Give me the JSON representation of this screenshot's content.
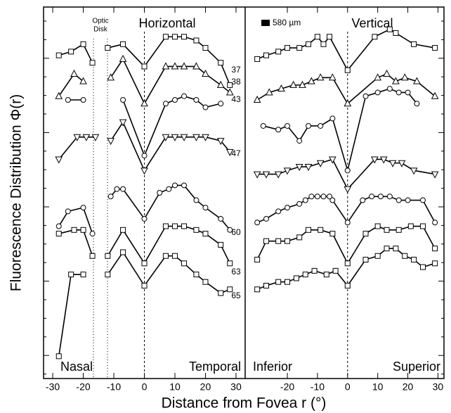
{
  "chart_data": [
    {
      "type": "line",
      "title": "Horizontal",
      "ylabel": "Fluorescence Distribution Φ(r)",
      "xlabel": "Distance from Fovea r (°)",
      "optic_disk_label": [
        "Optic",
        "Disk"
      ],
      "left_label": "Nasal",
      "right_label": "Temporal",
      "xlim": [
        -33,
        33
      ],
      "xticks": [
        -30,
        -20,
        -10,
        0,
        10,
        20,
        30
      ],
      "ylim": [
        0,
        100
      ],
      "series": [
        {
          "name": "37",
          "marker": "square",
          "color": "#000",
          "x": [
            -28,
            -24,
            -20,
            -17,
            -14,
            -12,
            -7,
            0,
            7,
            10,
            13,
            17,
            20,
            25,
            28
          ],
          "values": [
            87,
            88,
            90,
            85,
            null,
            89,
            90,
            84,
            92,
            92,
            92,
            91,
            89,
            85,
            79
          ]
        },
        {
          "name": "38",
          "marker": "triangle",
          "color": "#000",
          "x": [
            -28,
            -23,
            -20,
            -14,
            -11,
            -7,
            0,
            7,
            10,
            13,
            17,
            20,
            25,
            28
          ],
          "values": [
            76,
            82,
            80,
            null,
            81,
            86,
            74,
            84,
            84,
            84,
            84,
            82,
            79,
            77
          ]
        },
        {
          "name": "43",
          "marker": "circle",
          "color": "#000",
          "x": [
            -25,
            -20,
            -14,
            -7,
            0,
            7,
            10,
            13,
            17,
            20,
            25
          ],
          "values": [
            75,
            75,
            null,
            75,
            60,
            74,
            75,
            76,
            75,
            73,
            74
          ]
        },
        {
          "name": "47",
          "marker": "triangle-down",
          "color": "#000",
          "x": [
            -28,
            -22,
            -19,
            -16,
            -14,
            -11,
            -7,
            0,
            7,
            10,
            13,
            17,
            20,
            25,
            28
          ],
          "values": [
            59,
            65,
            65,
            65,
            null,
            64,
            69,
            56,
            65,
            65,
            65,
            65,
            65,
            64,
            61
          ]
        },
        {
          "name": "60",
          "marker": "circle",
          "color": "#000",
          "x": [
            -28,
            -25,
            -20,
            -17,
            -14,
            -11,
            -9,
            -7,
            0,
            5,
            8,
            10,
            13,
            17,
            20,
            25,
            28
          ],
          "values": [
            41,
            45,
            46,
            39,
            null,
            49,
            51,
            51,
            43,
            50,
            51,
            52,
            52,
            48,
            46,
            43,
            40
          ]
        },
        {
          "name": "63",
          "marker": "square",
          "color": "#000",
          "x": [
            -28,
            -23,
            -20,
            -17,
            -14,
            -12,
            -7,
            0,
            7,
            10,
            13,
            17,
            20,
            25,
            28
          ],
          "values": [
            39,
            40,
            40,
            33,
            null,
            33,
            40,
            31,
            41,
            41,
            41,
            40,
            39,
            36,
            31
          ]
        },
        {
          "name": "65",
          "marker": "square",
          "color": "#000",
          "x": [
            -28,
            -24,
            -20,
            -14,
            -12,
            -7,
            0,
            7,
            10,
            13,
            17,
            20,
            25,
            28
          ],
          "values": [
            6,
            28,
            28,
            null,
            28,
            34,
            25,
            33,
            33,
            31,
            28,
            26,
            23,
            24
          ]
        }
      ]
    },
    {
      "type": "line",
      "title": "Vertical",
      "scale_label": "580 µm",
      "left_label": "Inferior",
      "right_label": "Superior",
      "xlim": [
        -34,
        32
      ],
      "xticks": [
        -20,
        -10,
        0,
        10,
        20,
        30
      ],
      "ylim": [
        0,
        100
      ],
      "series": [
        {
          "marker": "square",
          "color": "#000",
          "x": [
            -30,
            -27,
            -23,
            -20,
            -16,
            -13,
            -10,
            -8,
            -6,
            0,
            9,
            14,
            16,
            22,
            29
          ],
          "values": [
            86,
            87,
            88,
            89,
            89,
            90,
            92,
            90,
            92,
            83,
            92,
            94,
            93,
            90,
            89
          ]
        },
        {
          "marker": "triangle",
          "color": "#000",
          "x": [
            -30,
            -26,
            -22,
            -18,
            -15,
            -12,
            -9,
            -5,
            0,
            10,
            13,
            16,
            19,
            23,
            29
          ],
          "values": [
            75,
            77,
            78,
            79,
            79,
            80,
            81,
            81,
            74,
            81,
            82,
            80,
            81,
            80,
            76
          ]
        },
        {
          "marker": "circle",
          "color": "#000",
          "x": [
            -28,
            -23,
            -20,
            -16,
            -13,
            -9,
            -5,
            0,
            6,
            10,
            14,
            17,
            20,
            23
          ],
          "values": [
            68,
            67,
            68,
            64,
            68,
            68,
            70,
            56,
            76,
            77,
            78,
            77,
            77,
            74
          ]
        },
        {
          "marker": "triangle-down",
          "color": "#000",
          "x": [
            -30,
            -27,
            -23,
            -20,
            -16,
            -13,
            -9,
            -5,
            0,
            9,
            12,
            15,
            18,
            22,
            29
          ],
          "values": [
            55,
            55,
            55,
            56,
            57,
            57,
            58,
            59,
            51,
            59,
            59,
            58,
            58,
            56,
            55
          ]
        },
        {
          "marker": "circle",
          "color": "#000",
          "x": [
            -30,
            -27,
            -23,
            -20,
            -16,
            -14,
            -12,
            -10,
            -8,
            -6,
            -5,
            0,
            5,
            8,
            11,
            14,
            17,
            20,
            25,
            29
          ],
          "values": [
            42,
            43,
            45,
            46,
            47,
            48,
            49,
            49,
            49,
            49,
            48,
            42,
            48,
            49,
            49,
            49,
            48,
            48,
            48,
            42
          ]
        },
        {
          "marker": "square",
          "color": "#000",
          "x": [
            -30,
            -27,
            -23,
            -20,
            -16,
            -13,
            -9,
            -5,
            0,
            6,
            10,
            13,
            17,
            21,
            25,
            29
          ],
          "values": [
            32,
            37,
            37,
            37,
            38,
            40,
            40,
            39,
            31,
            39,
            41,
            40,
            40,
            41,
            41,
            35
          ]
        },
        {
          "marker": "square",
          "color": "#000",
          "x": [
            -30,
            -27,
            -23,
            -20,
            -17,
            -14,
            -11,
            -7,
            -4,
            0,
            6,
            10,
            13,
            16,
            19,
            22,
            25,
            29
          ],
          "values": [
            24,
            25,
            26,
            26,
            27,
            28,
            29,
            28,
            29,
            25,
            32,
            33,
            35,
            35,
            33,
            32,
            30,
            31
          ]
        }
      ]
    }
  ]
}
